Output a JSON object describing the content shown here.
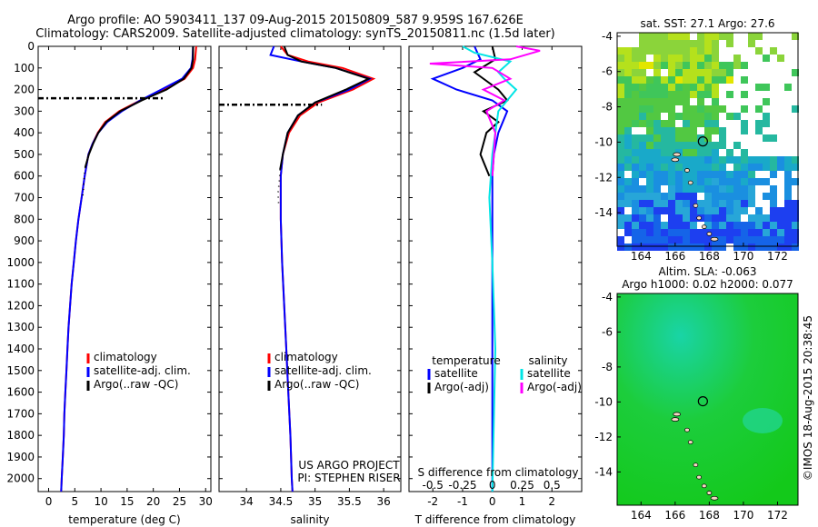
{
  "header": {
    "title_line1": "Argo profile: AO 5903411_137 09-Aug-2015 20150809_587 9.959S 167.626E",
    "title_line2": "Climatology: CARS2009. Satellite-adjusted climatology: synTS_20150811.nc (1.5d later)"
  },
  "footer": {
    "credit": "©IMOS 18-Aug-2015 20:38:45"
  },
  "colors": {
    "climatology": "#ff0000",
    "satellite": "#0000ff",
    "argo": "#000000",
    "sal_satellite": "#00e5e5",
    "sal_argo": "#ff00ff"
  },
  "chart_data": [
    {
      "type": "line",
      "name": "temperature-profile",
      "xlabel": "temperature (deg C)",
      "xlim": [
        -2,
        31
      ],
      "ylim": [
        2060,
        0
      ],
      "xticks": [
        0,
        5,
        10,
        15,
        20,
        25,
        30
      ],
      "yticks": [
        0,
        100,
        200,
        300,
        400,
        500,
        600,
        700,
        800,
        900,
        1000,
        1100,
        1200,
        1300,
        1400,
        1500,
        1600,
        1700,
        1800,
        1900,
        2000
      ],
      "legend": [
        "climatology",
        "satellite-adj. clim.",
        "Argo(..raw -QC)"
      ],
      "legend_position": "bottom-center",
      "series": [
        {
          "name": "climatology",
          "color": "#ff0000",
          "points": [
            [
              28.2,
              0
            ],
            [
              28.0,
              60
            ],
            [
              27.6,
              100
            ],
            [
              26.0,
              150
            ],
            [
              22.0,
              200
            ],
            [
              17.5,
              250
            ],
            [
              13.5,
              300
            ],
            [
              10.8,
              350
            ],
            [
              9.4,
              400
            ],
            [
              8.4,
              450
            ],
            [
              7.6,
              500
            ],
            [
              6.9,
              600
            ],
            [
              6.3,
              700
            ],
            [
              5.7,
              800
            ],
            [
              5.2,
              900
            ],
            [
              4.8,
              1000
            ],
            [
              4.4,
              1100
            ],
            [
              4.1,
              1200
            ],
            [
              3.8,
              1300
            ],
            [
              3.6,
              1400
            ],
            [
              3.4,
              1500
            ],
            [
              3.2,
              1600
            ],
            [
              3.0,
              1700
            ],
            [
              2.9,
              1800
            ],
            [
              2.7,
              1900
            ],
            [
              2.5,
              2000
            ],
            [
              2.4,
              2060
            ]
          ]
        },
        {
          "name": "satellite-adj. clim.",
          "color": "#0000ff",
          "points": [
            [
              27.6,
              0
            ],
            [
              27.5,
              60
            ],
            [
              27.2,
              100
            ],
            [
              25.5,
              150
            ],
            [
              21.5,
              200
            ],
            [
              17.5,
              250
            ],
            [
              14.0,
              300
            ],
            [
              11.2,
              350
            ],
            [
              9.5,
              400
            ],
            [
              8.4,
              450
            ],
            [
              7.6,
              500
            ],
            [
              6.9,
              600
            ],
            [
              6.3,
              700
            ],
            [
              5.7,
              800
            ],
            [
              5.2,
              900
            ],
            [
              4.8,
              1000
            ],
            [
              4.4,
              1100
            ],
            [
              4.1,
              1200
            ],
            [
              3.8,
              1300
            ],
            [
              3.6,
              1400
            ],
            [
              3.4,
              1500
            ],
            [
              3.2,
              1600
            ],
            [
              3.0,
              1700
            ],
            [
              2.9,
              1800
            ],
            [
              2.7,
              1900
            ],
            [
              2.5,
              2000
            ],
            [
              2.4,
              2060
            ]
          ]
        },
        {
          "name": "Argo(..raw -QC)",
          "color": "#000000",
          "points": [
            [
              27.6,
              0
            ],
            [
              27.6,
              60
            ],
            [
              27.3,
              100
            ],
            [
              25.8,
              150
            ],
            [
              22.5,
              200
            ],
            [
              17.8,
              250
            ],
            [
              13.7,
              300
            ],
            [
              11.0,
              350
            ],
            [
              9.5,
              400
            ],
            [
              8.5,
              450
            ],
            [
              7.7,
              500
            ],
            [
              7.0,
              560
            ]
          ]
        },
        {
          "name": "Argo raw",
          "color": "#000000",
          "dotted": true,
          "points": [
            [
              7.0,
              560
            ],
            [
              6.8,
              600
            ],
            [
              6.7,
              650
            ],
            [
              6.5,
              700
            ]
          ]
        },
        {
          "name": "isothermal-layer-depth",
          "color": "#000000",
          "dashdot": true,
          "points": [
            [
              -2,
              240
            ],
            [
              22.0,
              240
            ]
          ]
        }
      ]
    },
    {
      "type": "line",
      "name": "salinity-profile",
      "xlabel": "salinity",
      "xlim": [
        33.6,
        36.25
      ],
      "ylim": [
        2060,
        0
      ],
      "xticks": [
        34,
        34.5,
        35,
        35.5,
        36
      ],
      "legend": [
        "climatology",
        "satellite-adj. clim.",
        "Argo(..raw -QC)"
      ],
      "legend_position": "bottom-center",
      "annotation": [
        "US ARGO PROJECT",
        "PI: STEPHEN RISER"
      ],
      "series": [
        {
          "name": "climatology",
          "color": "#ff0000",
          "points": [
            [
              34.5,
              0
            ],
            [
              34.6,
              40
            ],
            [
              34.9,
              70
            ],
            [
              35.4,
              100
            ],
            [
              35.85,
              150
            ],
            [
              35.55,
              200
            ],
            [
              35.05,
              260
            ],
            [
              34.78,
              320
            ],
            [
              34.62,
              400
            ],
            [
              34.53,
              500
            ],
            [
              34.5,
              600
            ],
            [
              34.5,
              800
            ],
            [
              34.52,
              1000
            ],
            [
              34.55,
              1200
            ],
            [
              34.58,
              1400
            ],
            [
              34.61,
              1600
            ],
            [
              34.64,
              1800
            ],
            [
              34.66,
              2000
            ],
            [
              34.67,
              2060
            ]
          ]
        },
        {
          "name": "satellite-adj. clim.",
          "color": "#0000ff",
          "points": [
            [
              34.4,
              0
            ],
            [
              34.35,
              40
            ],
            [
              34.8,
              70
            ],
            [
              35.3,
              100
            ],
            [
              35.8,
              150
            ],
            [
              35.5,
              200
            ],
            [
              35.0,
              260
            ],
            [
              34.75,
              320
            ],
            [
              34.6,
              400
            ],
            [
              34.53,
              500
            ],
            [
              34.5,
              600
            ],
            [
              34.5,
              800
            ],
            [
              34.52,
              1000
            ],
            [
              34.55,
              1200
            ],
            [
              34.58,
              1400
            ],
            [
              34.61,
              1600
            ],
            [
              34.64,
              1800
            ],
            [
              34.66,
              2000
            ],
            [
              34.67,
              2060
            ]
          ]
        },
        {
          "name": "Argo(..raw -QC)",
          "color": "#000000",
          "points": [
            [
              34.55,
              0
            ],
            [
              34.6,
              40
            ],
            [
              34.8,
              70
            ],
            [
              35.3,
              100
            ],
            [
              35.78,
              150
            ],
            [
              35.45,
              200
            ],
            [
              35.0,
              260
            ],
            [
              34.75,
              320
            ],
            [
              34.6,
              400
            ],
            [
              34.53,
              500
            ],
            [
              34.49,
              570
            ]
          ]
        },
        {
          "name": "Argo raw",
          "color": "#000000",
          "dotted": true,
          "points": [
            [
              34.49,
              570
            ],
            [
              34.48,
              620
            ],
            [
              34.46,
              680
            ],
            [
              34.47,
              740
            ]
          ]
        },
        {
          "name": "isothermal-layer-depth",
          "color": "#000000",
          "dashdot": true,
          "points": [
            [
              33.6,
              270
            ],
            [
              35.1,
              270
            ]
          ]
        }
      ]
    },
    {
      "type": "line",
      "name": "difference-profile",
      "xlabel": "T difference from climatology",
      "xlabel_top": "S difference from climatology",
      "xlim": [
        -2.8,
        3.0
      ],
      "ylim": [
        2060,
        0
      ],
      "xticks": [
        -2,
        -1,
        0,
        1,
        2
      ],
      "xticks_top_labels": [
        "-0.5",
        "-0.25",
        "0",
        "0.25",
        "0.5"
      ],
      "legend_titles": [
        "temperature",
        "salinity"
      ],
      "legend": [
        "satellite",
        "Argo(-adj)",
        "satellite",
        "Argo(-adj)"
      ],
      "legend_position": "bottom-center",
      "series": [
        {
          "name": "temperature satellite",
          "color": "#0000ff",
          "points": [
            [
              -0.6,
              0
            ],
            [
              -0.5,
              30
            ],
            [
              -0.4,
              60
            ],
            [
              -1.0,
              100
            ],
            [
              -2.0,
              150
            ],
            [
              -1.2,
              200
            ],
            [
              0.0,
              250
            ],
            [
              0.5,
              300
            ],
            [
              0.2,
              400
            ],
            [
              0.05,
              500
            ],
            [
              0.0,
              600
            ],
            [
              0.0,
              2060
            ]
          ]
        },
        {
          "name": "temperature Argo(-adj)",
          "color": "#000000",
          "points": [
            [
              0.0,
              0
            ],
            [
              0.1,
              60
            ],
            [
              -0.6,
              120
            ],
            [
              0.2,
              200
            ],
            [
              0.5,
              250
            ],
            [
              -0.3,
              300
            ],
            [
              0.2,
              350
            ],
            [
              -0.2,
              400
            ],
            [
              -0.4,
              500
            ],
            [
              -0.1,
              600
            ]
          ]
        },
        {
          "name": "salinity satellite",
          "color": "#00e5e5",
          "points": [
            [
              -1.0,
              0
            ],
            [
              -0.6,
              30
            ],
            [
              0.6,
              70
            ],
            [
              0.2,
              120
            ],
            [
              0.4,
              150
            ],
            [
              0.8,
              200
            ],
            [
              0.2,
              300
            ],
            [
              0.0,
              500
            ],
            [
              -0.1,
              700
            ],
            [
              0.0,
              1000
            ],
            [
              0.1,
              1400
            ],
            [
              0.0,
              2060
            ]
          ]
        },
        {
          "name": "salinity Argo(-adj)",
          "color": "#ff00ff",
          "points": [
            [
              0.8,
              0
            ],
            [
              1.6,
              20
            ],
            [
              0.6,
              60
            ],
            [
              -2.1,
              80
            ],
            [
              0.0,
              100
            ],
            [
              0.6,
              150
            ],
            [
              -0.3,
              200
            ],
            [
              0.4,
              250
            ],
            [
              -0.2,
              300
            ],
            [
              0.1,
              400
            ],
            [
              0.0,
              600
            ]
          ]
        }
      ]
    }
  ],
  "maps": [
    {
      "name": "sst-map",
      "title": "sat. SST: 27.1  Argo: 27.6",
      "xticks": [
        164,
        166,
        168,
        170,
        172
      ],
      "yticks": [
        -4,
        -6,
        -8,
        -10,
        -12,
        -14
      ],
      "xlim": [
        162.6,
        173.2
      ],
      "ylim": [
        -15.9,
        -3.8
      ],
      "argo_position": [
        167.626,
        -9.959
      ]
    },
    {
      "name": "sla-map",
      "title_line1": "Altim. SLA: -0.063",
      "title_line2": "Argo h1000: 0.02 h2000: 0.077",
      "xticks": [
        164,
        166,
        168,
        170,
        172
      ],
      "yticks": [
        -4,
        -6,
        -8,
        -10,
        -12,
        -14
      ],
      "xlim": [
        162.6,
        173.2
      ],
      "ylim": [
        -15.9,
        -3.8
      ],
      "argo_position": [
        167.626,
        -9.959
      ]
    }
  ]
}
